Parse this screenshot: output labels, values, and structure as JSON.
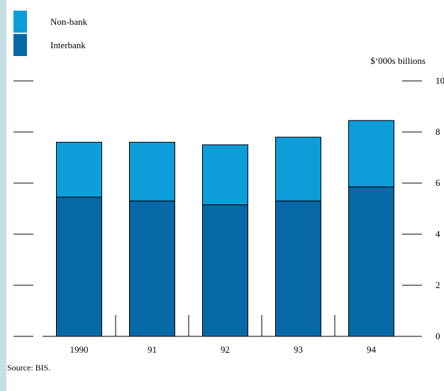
{
  "chart_data": {
    "type": "bar",
    "stacked": true,
    "categories": [
      "1990",
      "91",
      "92",
      "93",
      "94"
    ],
    "series": [
      {
        "name": "Interbank",
        "values": [
          5.45,
          5.3,
          5.15,
          5.3,
          5.85
        ],
        "color": "#0668a7"
      },
      {
        "name": "Non-bank",
        "values": [
          2.15,
          2.3,
          2.35,
          2.5,
          2.6
        ],
        "color": "#0d9dd9"
      }
    ],
    "legend": [
      {
        "name": "Non-bank",
        "color": "#0d9dd9"
      },
      {
        "name": "Interbank",
        "color": "#0668a7"
      }
    ],
    "legend_position": "top-left",
    "unit_label": "$‘000s billions",
    "yticks": [
      "0",
      "2",
      "4",
      "6",
      "8",
      "10"
    ],
    "ylim": [
      0,
      10
    ],
    "grid": false
  },
  "source": "Source:  BIS."
}
